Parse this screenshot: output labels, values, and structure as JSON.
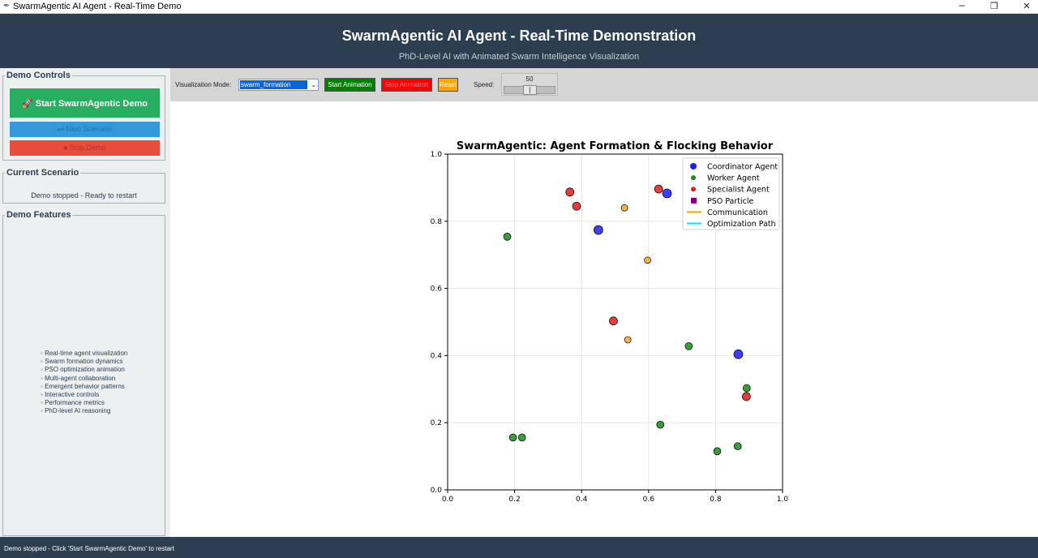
{
  "window": {
    "title": "SwarmAgentic AI Agent - Real-Time Demo"
  },
  "header": {
    "title": "SwarmAgentic AI Agent - Real-Time Demonstration",
    "subtitle": "PhD-Level AI with Animated Swarm Intelligence Visualization"
  },
  "sidebar": {
    "demo_controls": {
      "legend": "Demo Controls",
      "start_label": "Start SwarmAgentic Demo",
      "next_label": "Next Scenario",
      "stop_label": "Stop Demo"
    },
    "current_scenario": {
      "legend": "Current Scenario",
      "text": "Demo stopped - Ready to restart"
    },
    "demo_features": {
      "legend": "Demo Features",
      "items": [
        "Real-time agent visualization",
        "Swarm formation dynamics",
        "PSO optimization animation",
        "Multi-agent collaboration",
        "Emergent behavior patterns",
        "Interactive controls",
        "Performance metrics",
        "PhD-level AI reasoning"
      ]
    }
  },
  "toolbar": {
    "mode_label": "Visualization Mode:",
    "mode_value": "swarm_formation",
    "start_anim_label": "Start Animation",
    "stop_anim_label": "Stop Animation",
    "reset_label": "Reset",
    "speed_label": "Speed:",
    "speed_value": 50,
    "speed_min": 0,
    "speed_max": 100
  },
  "status": {
    "text": "Demo stopped - Click 'Start SwarmAgentic Demo' to restart"
  },
  "colors": {
    "coordinator": "#1e1ef0",
    "worker": "#1a8a1a",
    "specialist": "#e01b1b",
    "pso": "#800080",
    "communication": "#ffa500",
    "optimization": "#00e5ff",
    "particle": "#f7a426"
  },
  "chart_data": {
    "type": "scatter",
    "title": "SwarmAgentic: Agent Formation & Flocking Behavior",
    "xlabel": "",
    "ylabel": "",
    "xlim": [
      0,
      1
    ],
    "ylim": [
      0,
      1
    ],
    "xticks": [
      "0.0",
      "0.2",
      "0.4",
      "0.6",
      "0.8",
      "1.0"
    ],
    "yticks": [
      "0.0",
      "0.2",
      "0.4",
      "0.6",
      "0.8",
      "1.0"
    ],
    "grid": true,
    "legend_placement": "top-right",
    "legend": [
      {
        "label": "Coordinator Agent",
        "marker": "circle",
        "color_key": "coordinator"
      },
      {
        "label": "Worker Agent",
        "marker": "circle-small",
        "color_key": "worker"
      },
      {
        "label": "Specialist Agent",
        "marker": "circle-small",
        "color_key": "specialist"
      },
      {
        "label": "PSO Particle",
        "marker": "square",
        "color_key": "pso"
      },
      {
        "label": "Communication",
        "marker": "line",
        "color_key": "communication"
      },
      {
        "label": "Optimization Path",
        "marker": "line",
        "color_key": "optimization"
      }
    ],
    "series": [
      {
        "name": "Coordinator Agent",
        "color_key": "coordinator",
        "points": [
          [
            0.45,
            0.774
          ],
          [
            0.655,
            0.883
          ],
          [
            0.868,
            0.404
          ]
        ]
      },
      {
        "name": "Worker Agent",
        "color_key": "worker",
        "points": [
          [
            0.178,
            0.754
          ],
          [
            0.72,
            0.428
          ],
          [
            0.893,
            0.303
          ],
          [
            0.635,
            0.194
          ],
          [
            0.195,
            0.156
          ],
          [
            0.222,
            0.156
          ],
          [
            0.866,
            0.13
          ],
          [
            0.805,
            0.115
          ]
        ]
      },
      {
        "name": "Specialist Agent",
        "color_key": "specialist",
        "points": [
          [
            0.365,
            0.887
          ],
          [
            0.385,
            0.845
          ],
          [
            0.63,
            0.896
          ],
          [
            0.495,
            0.503
          ],
          [
            0.892,
            0.278
          ]
        ]
      },
      {
        "color_key": "particle",
        "points": [
          [
            0.528,
            0.84
          ],
          [
            0.597,
            0.684
          ],
          [
            0.538,
            0.447
          ]
        ]
      }
    ]
  }
}
